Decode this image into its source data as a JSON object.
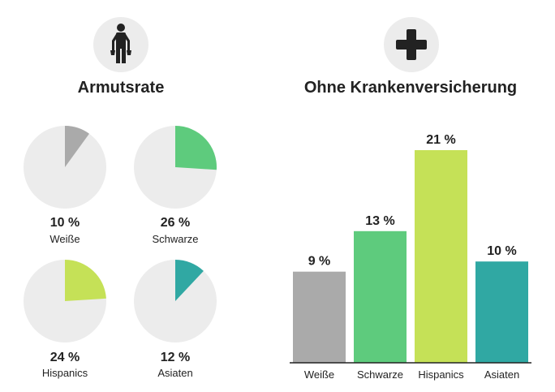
{
  "chart_data": [
    {
      "type": "pie",
      "title": "Armutsrate",
      "unit": "%",
      "categories": [
        "Weiße",
        "Schwarze",
        "Hispanics",
        "Asiaten"
      ],
      "values": [
        10,
        26,
        24,
        12
      ],
      "value_labels": [
        "10 %",
        "26 %",
        "24 %",
        "12 %"
      ],
      "colors": [
        "#aaaaaa",
        "#5ecb7d",
        "#c5e157",
        "#30a8a3"
      ],
      "background_color": "#ececec",
      "icon": "person-empty-pockets-icon"
    },
    {
      "type": "bar",
      "title": "Ohne Krankenversicherung",
      "unit": "%",
      "categories": [
        "Weiße",
        "Schwarze",
        "Hispanics",
        "Asiaten"
      ],
      "values": [
        9,
        13,
        21,
        10
      ],
      "value_labels": [
        "9 %",
        "13 %",
        "21 %",
        "10 %"
      ],
      "colors": [
        "#aaaaaa",
        "#5ecb7d",
        "#c5e157",
        "#30a8a3"
      ],
      "ylim": [
        0,
        21
      ],
      "grid": false,
      "icon": "medical-cross-icon"
    }
  ]
}
